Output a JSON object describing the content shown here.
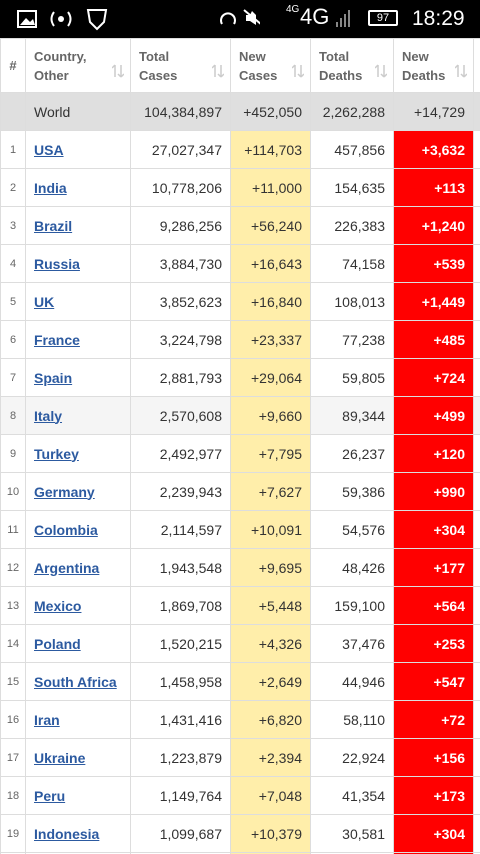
{
  "status_bar": {
    "network_small": "4G",
    "network": "4G",
    "battery": "97",
    "time": "18:29"
  },
  "table": {
    "headers": [
      [
        "#"
      ],
      [
        "Country,",
        "Other"
      ],
      [
        "Total",
        "Cases"
      ],
      [
        "New",
        "Cases"
      ],
      [
        "Total",
        "Deaths"
      ],
      [
        "New",
        "Deaths"
      ]
    ],
    "world": [
      "World",
      "104,384,897",
      "+452,050",
      "2,262,288",
      "+14,729"
    ],
    "rows": [
      [
        "1",
        "USA",
        "27,027,347",
        "+114,703",
        "457,856",
        "+3,632"
      ],
      [
        "2",
        "India",
        "10,778,206",
        "+11,000",
        "154,635",
        "+113"
      ],
      [
        "3",
        "Brazil",
        "9,286,256",
        "+56,240",
        "226,383",
        "+1,240"
      ],
      [
        "4",
        "Russia",
        "3,884,730",
        "+16,643",
        "74,158",
        "+539"
      ],
      [
        "5",
        "UK",
        "3,852,623",
        "+16,840",
        "108,013",
        "+1,449"
      ],
      [
        "6",
        "France",
        "3,224,798",
        "+23,337",
        "77,238",
        "+485"
      ],
      [
        "7",
        "Spain",
        "2,881,793",
        "+29,064",
        "59,805",
        "+724"
      ],
      [
        "8",
        "Italy",
        "2,570,608",
        "+9,660",
        "89,344",
        "+499"
      ],
      [
        "9",
        "Turkey",
        "2,492,977",
        "+7,795",
        "26,237",
        "+120"
      ],
      [
        "10",
        "Germany",
        "2,239,943",
        "+7,627",
        "59,386",
        "+990"
      ],
      [
        "11",
        "Colombia",
        "2,114,597",
        "+10,091",
        "54,576",
        "+304"
      ],
      [
        "12",
        "Argentina",
        "1,943,548",
        "+9,695",
        "48,426",
        "+177"
      ],
      [
        "13",
        "Mexico",
        "1,869,708",
        "+5,448",
        "159,100",
        "+564"
      ],
      [
        "14",
        "Poland",
        "1,520,215",
        "+4,326",
        "37,476",
        "+253"
      ],
      [
        "15",
        "South Africa",
        "1,458,958",
        "+2,649",
        "44,946",
        "+547"
      ],
      [
        "16",
        "Iran",
        "1,431,416",
        "+6,820",
        "58,110",
        "+72"
      ],
      [
        "17",
        "Ukraine",
        "1,223,879",
        "+2,394",
        "22,924",
        "+156"
      ],
      [
        "18",
        "Peru",
        "1,149,764",
        "+7,048",
        "41,354",
        "+173"
      ],
      [
        "19",
        "Indonesia",
        "1,099,687",
        "+10,379",
        "30,581",
        "+304"
      ]
    ]
  }
}
